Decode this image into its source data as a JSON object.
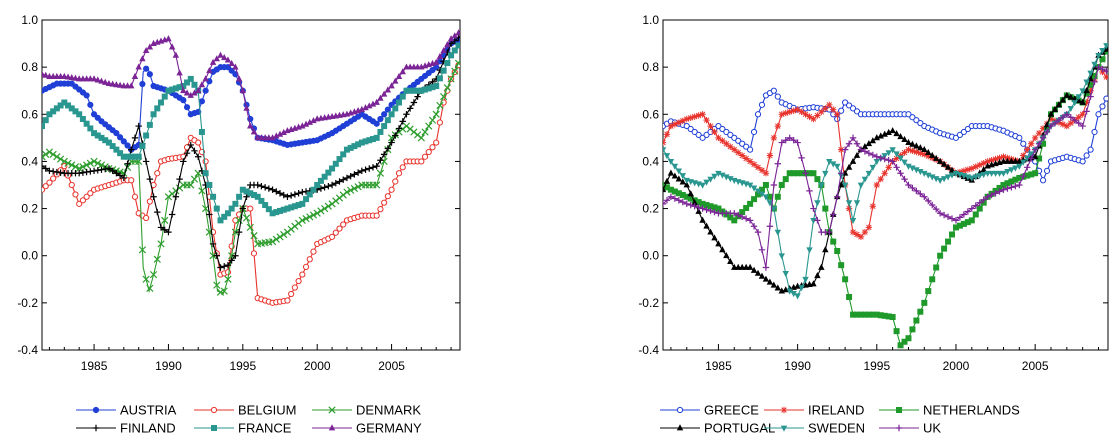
{
  "chart_data": [
    {
      "type": "line",
      "xlim": [
        1981.5,
        2009.6
      ],
      "ylim": [
        -0.4,
        1.0
      ],
      "x_ticks": [
        "1985",
        "1990",
        "1995",
        "2000",
        "2005"
      ],
      "y_ticks": [
        "1.0",
        "0.8",
        "0.6",
        "0.4",
        "0.2",
        "0.0",
        "-0.2",
        "-0.4"
      ],
      "legend_placement": "bottom",
      "series": [
        {
          "name": "AUSTRIA",
          "color": "#1f3fd6",
          "marker": "dot",
          "x": [
            1981.5,
            1982.5,
            1983.5,
            1984.5,
            1985,
            1985.5,
            1986.5,
            1987.5,
            1988,
            1988.3,
            1988.6,
            1989,
            1990,
            1991,
            1991.5,
            1992,
            1992.5,
            1993,
            1993.5,
            1994,
            1994.5,
            1995,
            1995.5,
            1996,
            1997,
            1998,
            1999,
            2000,
            2001,
            2002,
            2003,
            2004,
            2005,
            2006,
            2007,
            2008,
            2009,
            2009.6
          ],
          "y": [
            0.7,
            0.73,
            0.73,
            0.68,
            0.6,
            0.57,
            0.52,
            0.45,
            0.47,
            0.78,
            0.8,
            0.72,
            0.7,
            0.66,
            0.6,
            0.61,
            0.7,
            0.78,
            0.8,
            0.8,
            0.77,
            0.7,
            0.58,
            0.5,
            0.49,
            0.47,
            0.48,
            0.49,
            0.52,
            0.56,
            0.6,
            0.56,
            0.64,
            0.7,
            0.75,
            0.8,
            0.9,
            0.92
          ]
        },
        {
          "name": "BELGIUM",
          "color": "#e8322c",
          "marker": "circle",
          "x": [
            1981.5,
            1982,
            1983,
            1983.5,
            1984,
            1985,
            1986,
            1987,
            1987.5,
            1988,
            1988.5,
            1989,
            1989.5,
            1990,
            1991,
            1991.5,
            1992,
            1992.5,
            1993,
            1993.5,
            1994,
            1994.5,
            1995,
            1995.5,
            1996,
            1996.5,
            1997,
            1998,
            1999,
            2000,
            2001,
            2002,
            2003,
            2004,
            2005,
            2005.5,
            2006,
            2007,
            2008,
            2008.5,
            2009,
            2009.6
          ],
          "y": [
            0.28,
            0.31,
            0.38,
            0.3,
            0.22,
            0.28,
            0.3,
            0.32,
            0.32,
            0.18,
            0.16,
            0.3,
            0.4,
            0.41,
            0.42,
            0.5,
            0.48,
            0.4,
            0.1,
            -0.08,
            -0.07,
            0.15,
            0.2,
            0.2,
            -0.18,
            -0.19,
            -0.2,
            -0.19,
            -0.08,
            0.05,
            0.08,
            0.15,
            0.17,
            0.17,
            0.28,
            0.35,
            0.4,
            0.4,
            0.48,
            0.65,
            0.75,
            0.82
          ]
        },
        {
          "name": "DENMARK",
          "color": "#2f9e2f",
          "marker": "x",
          "x": [
            1981.5,
            1982,
            1983,
            1984,
            1985,
            1986,
            1987,
            1987.5,
            1988,
            1988.3,
            1988.7,
            1989,
            1989.5,
            1990,
            1991,
            1991.5,
            1992,
            1992.5,
            1993,
            1993.3,
            1993.7,
            1994,
            1994.5,
            1995,
            1995.5,
            1996,
            1997,
            1998,
            1999,
            2000,
            2001,
            2002,
            2003,
            2004,
            2005,
            2006,
            2007,
            2008,
            2009,
            2009.6
          ],
          "y": [
            0.42,
            0.44,
            0.4,
            0.37,
            0.4,
            0.37,
            0.35,
            0.4,
            0.4,
            -0.05,
            -0.15,
            -0.08,
            0.05,
            0.25,
            0.3,
            0.3,
            0.35,
            0.2,
            0.0,
            -0.15,
            -0.16,
            -0.1,
            0.1,
            0.2,
            0.12,
            0.05,
            0.06,
            0.1,
            0.15,
            0.18,
            0.22,
            0.27,
            0.3,
            0.3,
            0.5,
            0.55,
            0.5,
            0.6,
            0.75,
            0.83
          ]
        },
        {
          "name": "FINLAND",
          "color": "#000000",
          "marker": "plus",
          "x": [
            1981.5,
            1982,
            1983,
            1984,
            1985,
            1986,
            1987,
            1987.5,
            1988,
            1988.5,
            1989,
            1989.5,
            1990,
            1990.5,
            1991,
            1991.5,
            1992,
            1992.5,
            1993,
            1993.5,
            1994,
            1994.5,
            1995,
            1995.5,
            1996,
            1997,
            1998,
            1999,
            2000,
            2001,
            2002,
            2003,
            2004,
            2005,
            2006,
            2007,
            2008,
            2009,
            2009.6
          ],
          "y": [
            0.38,
            0.36,
            0.35,
            0.35,
            0.36,
            0.37,
            0.33,
            0.45,
            0.55,
            0.4,
            0.25,
            0.12,
            0.1,
            0.25,
            0.4,
            0.47,
            0.42,
            0.3,
            0.05,
            -0.05,
            -0.04,
            0.0,
            0.2,
            0.3,
            0.3,
            0.28,
            0.25,
            0.27,
            0.28,
            0.3,
            0.33,
            0.36,
            0.38,
            0.48,
            0.6,
            0.7,
            0.75,
            0.9,
            0.93
          ]
        },
        {
          "name": "FRANCE",
          "color": "#2a9690",
          "marker": "square",
          "x": [
            1981.5,
            1982,
            1983,
            1984,
            1985,
            1986,
            1987,
            1988,
            1989,
            1990,
            1991,
            1991.5,
            1992,
            1992.5,
            1993,
            1993.5,
            1994,
            1994.5,
            1995,
            1996,
            1997,
            1998,
            1999,
            2000,
            2001,
            2002,
            2003,
            2004,
            2005,
            2006,
            2007,
            2008,
            2009,
            2009.6
          ],
          "y": [
            0.55,
            0.6,
            0.65,
            0.6,
            0.52,
            0.48,
            0.42,
            0.42,
            0.6,
            0.7,
            0.72,
            0.75,
            0.7,
            0.35,
            0.25,
            0.15,
            0.18,
            0.22,
            0.28,
            0.25,
            0.18,
            0.2,
            0.22,
            0.3,
            0.37,
            0.45,
            0.48,
            0.5,
            0.6,
            0.7,
            0.7,
            0.72,
            0.85,
            0.9
          ]
        },
        {
          "name": "GERMANY",
          "color": "#7b2496",
          "marker": "triangle",
          "x": [
            1981.5,
            1982,
            1983,
            1984,
            1985,
            1986,
            1987,
            1987.5,
            1988,
            1988.5,
            1989,
            1990,
            1990.5,
            1991,
            1991.5,
            1992,
            1992.5,
            1993,
            1993.5,
            1994,
            1994.5,
            1995,
            1995.5,
            1996,
            1997,
            1998,
            1999,
            2000,
            2001,
            2002,
            2003,
            2004,
            2005,
            2006,
            2007,
            2008,
            2009,
            2009.6
          ],
          "y": [
            0.77,
            0.76,
            0.76,
            0.75,
            0.75,
            0.73,
            0.72,
            0.72,
            0.8,
            0.87,
            0.9,
            0.92,
            0.85,
            0.7,
            0.68,
            0.7,
            0.75,
            0.82,
            0.85,
            0.83,
            0.8,
            0.7,
            0.55,
            0.5,
            0.5,
            0.53,
            0.55,
            0.58,
            0.59,
            0.6,
            0.62,
            0.65,
            0.72,
            0.8,
            0.8,
            0.82,
            0.92,
            0.95
          ]
        }
      ]
    },
    {
      "type": "line",
      "xlim": [
        1981.5,
        2009.6
      ],
      "ylim": [
        -0.4,
        1.0
      ],
      "x_ticks": [
        "1985",
        "1990",
        "1995",
        "2000",
        "2005"
      ],
      "y_ticks": [
        "1.0",
        "0.8",
        "0.6",
        "0.4",
        "0.2",
        "0.0",
        "-0.2",
        "-0.4"
      ],
      "legend_placement": "bottom",
      "series": [
        {
          "name": "GREECE",
          "color": "#1f3fd6",
          "marker": "circle",
          "x": [
            1981.5,
            1982,
            1983,
            1984,
            1985,
            1986,
            1987,
            1987.5,
            1988,
            1988.5,
            1989,
            1990,
            1991,
            1992,
            1992.5,
            1993,
            1994,
            1995,
            1996,
            1997,
            1998,
            1999,
            2000,
            2001,
            2002,
            2003,
            2004,
            2005,
            2005.5,
            2006,
            2007,
            2008,
            2008.5,
            2009,
            2009.6
          ],
          "y": [
            0.55,
            0.57,
            0.55,
            0.5,
            0.55,
            0.5,
            0.45,
            0.6,
            0.68,
            0.7,
            0.65,
            0.62,
            0.63,
            0.62,
            0.58,
            0.65,
            0.6,
            0.6,
            0.6,
            0.6,
            0.55,
            0.52,
            0.5,
            0.55,
            0.55,
            0.53,
            0.5,
            0.4,
            0.32,
            0.4,
            0.42,
            0.4,
            0.45,
            0.6,
            0.68
          ]
        },
        {
          "name": "IRELAND",
          "color": "#e8322c",
          "marker": "star",
          "x": [
            1981.5,
            1982,
            1983,
            1984,
            1985,
            1986,
            1987,
            1988,
            1988.5,
            1989,
            1990,
            1991,
            1992,
            1992.5,
            1993,
            1993.5,
            1994,
            1994.5,
            1995,
            1996,
            1997,
            1998,
            1999,
            2000,
            2001,
            2002,
            2003,
            2004,
            2005,
            2006,
            2007,
            2008,
            2009,
            2009.6
          ],
          "y": [
            0.48,
            0.55,
            0.58,
            0.6,
            0.5,
            0.45,
            0.4,
            0.35,
            0.5,
            0.6,
            0.62,
            0.58,
            0.64,
            0.6,
            0.3,
            0.1,
            0.08,
            0.12,
            0.3,
            0.4,
            0.45,
            0.43,
            0.4,
            0.35,
            0.37,
            0.4,
            0.42,
            0.4,
            0.5,
            0.58,
            0.55,
            0.6,
            0.8,
            0.75
          ]
        },
        {
          "name": "NETHERLANDS",
          "color": "#1f9a2a",
          "marker": "square",
          "x": [
            1981.5,
            1982,
            1983,
            1984,
            1985,
            1986,
            1987,
            1988,
            1988.5,
            1989,
            1989.5,
            1990,
            1991,
            1991.5,
            1992,
            1992.5,
            1993,
            1993.5,
            1994,
            1995,
            1996,
            1996.5,
            1997,
            1998,
            1998.5,
            1999,
            2000,
            2001,
            2002,
            2003,
            2004,
            2005,
            2006,
            2007,
            2008,
            2009,
            2009.6
          ],
          "y": [
            0.3,
            0.28,
            0.25,
            0.22,
            0.2,
            0.15,
            0.22,
            0.3,
            0.2,
            0.3,
            0.35,
            0.35,
            0.35,
            0.3,
            0.1,
            0.02,
            -0.1,
            -0.25,
            -0.25,
            -0.25,
            -0.26,
            -0.38,
            -0.35,
            -0.2,
            -0.1,
            0.0,
            0.12,
            0.15,
            0.25,
            0.3,
            0.33,
            0.35,
            0.6,
            0.68,
            0.65,
            0.8,
            0.88
          ]
        },
        {
          "name": "PORTUGAL",
          "color": "#000000",
          "marker": "triangle",
          "x": [
            1981.5,
            1982,
            1983,
            1984,
            1985,
            1986,
            1987,
            1988,
            1989,
            1990,
            1991,
            1991.5,
            1992,
            1992.5,
            1993,
            1994,
            1995,
            1996,
            1997,
            1998,
            1999,
            2000,
            2001,
            2002,
            2003,
            2004,
            2005,
            2006,
            2007,
            2008,
            2009,
            2009.6
          ],
          "y": [
            0.28,
            0.35,
            0.3,
            0.15,
            0.05,
            -0.05,
            -0.05,
            -0.1,
            -0.15,
            -0.13,
            -0.12,
            -0.05,
            0.1,
            0.25,
            0.35,
            0.45,
            0.5,
            0.53,
            0.48,
            0.45,
            0.4,
            0.35,
            0.32,
            0.38,
            0.4,
            0.4,
            0.42,
            0.6,
            0.68,
            0.65,
            0.85,
            0.88
          ]
        },
        {
          "name": "SWEDEN",
          "color": "#2a9690",
          "marker": "triangle-down",
          "x": [
            1981.5,
            1982,
            1983,
            1984,
            1985,
            1986,
            1987,
            1988,
            1988.5,
            1989,
            1989.5,
            1990,
            1990.5,
            1991,
            1991.5,
            1992,
            1992.5,
            1993,
            1993.5,
            1994,
            1995,
            1996,
            1997,
            1998,
            1999,
            2000,
            2001,
            2002,
            2003,
            2004,
            2005,
            2006,
            2007,
            2008,
            2009,
            2009.6
          ],
          "y": [
            0.45,
            0.4,
            0.32,
            0.3,
            0.35,
            0.32,
            0.3,
            0.25,
            0.2,
            0.0,
            -0.15,
            -0.17,
            -0.1,
            0.15,
            0.3,
            0.4,
            0.38,
            0.3,
            0.15,
            0.3,
            0.4,
            0.45,
            0.38,
            0.35,
            0.32,
            0.35,
            0.33,
            0.35,
            0.35,
            0.38,
            0.45,
            0.55,
            0.6,
            0.7,
            0.85,
            0.9
          ]
        },
        {
          "name": "UK",
          "color": "#7b2496",
          "marker": "plus",
          "x": [
            1981.5,
            1982,
            1983,
            1984,
            1985,
            1986,
            1987,
            1987.5,
            1988,
            1988.5,
            1989,
            1989.5,
            1990,
            1990.5,
            1991,
            1991.5,
            1992,
            1992.5,
            1993,
            1993.5,
            1994,
            1995,
            1996,
            1997,
            1998,
            1999,
            2000,
            2001,
            2002,
            2003,
            2004,
            2005,
            2006,
            2007,
            2008,
            2009,
            2009.6
          ],
          "y": [
            0.22,
            0.25,
            0.22,
            0.2,
            0.18,
            0.18,
            0.15,
            0.1,
            -0.05,
            0.3,
            0.48,
            0.5,
            0.48,
            0.35,
            0.2,
            0.1,
            0.1,
            0.25,
            0.45,
            0.5,
            0.45,
            0.42,
            0.4,
            0.3,
            0.25,
            0.18,
            0.15,
            0.2,
            0.25,
            0.28,
            0.3,
            0.45,
            0.55,
            0.6,
            0.55,
            0.8,
            0.78
          ]
        }
      ]
    }
  ]
}
